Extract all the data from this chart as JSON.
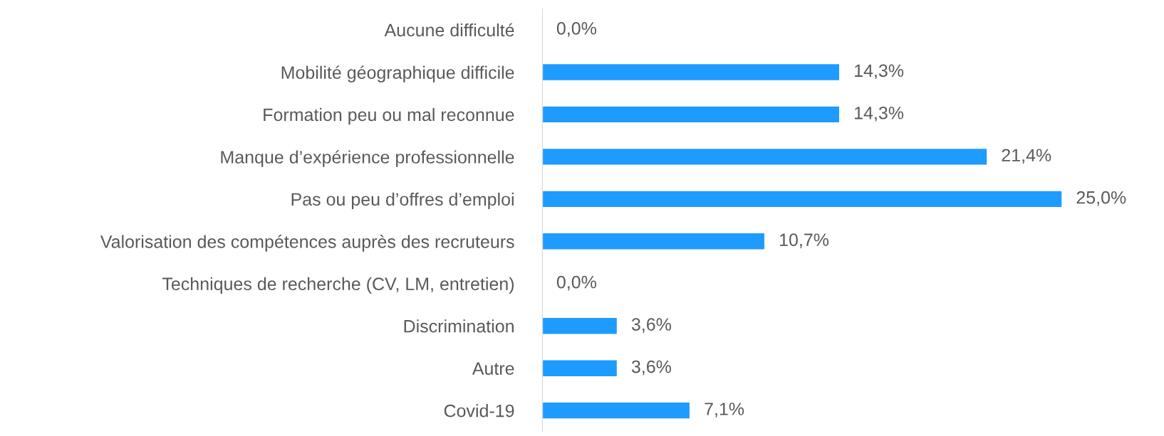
{
  "chart_data": {
    "type": "bar",
    "orientation": "horizontal",
    "categories": [
      "Aucune difficulté",
      "Mobilité géographique difficile",
      "Formation peu ou mal reconnue",
      "Manque d’expérience professionnelle",
      "Pas ou peu d’offres d’emploi",
      "Valorisation des compétences auprès des recruteurs",
      "Techniques de recherche (CV, LM, entretien)",
      "Discrimination",
      "Autre",
      "Covid-19"
    ],
    "values": [
      0.0,
      14.3,
      14.3,
      21.4,
      25.0,
      10.7,
      0.0,
      3.6,
      3.6,
      7.1
    ],
    "value_labels": [
      "0,0%",
      "14,3%",
      "14,3%",
      "21,4%",
      "25,0%",
      "10,7%",
      "0,0%",
      "3,6%",
      "3,6%",
      "7,1%"
    ],
    "color": "#1e9bff",
    "grid": false,
    "legend": false
  }
}
